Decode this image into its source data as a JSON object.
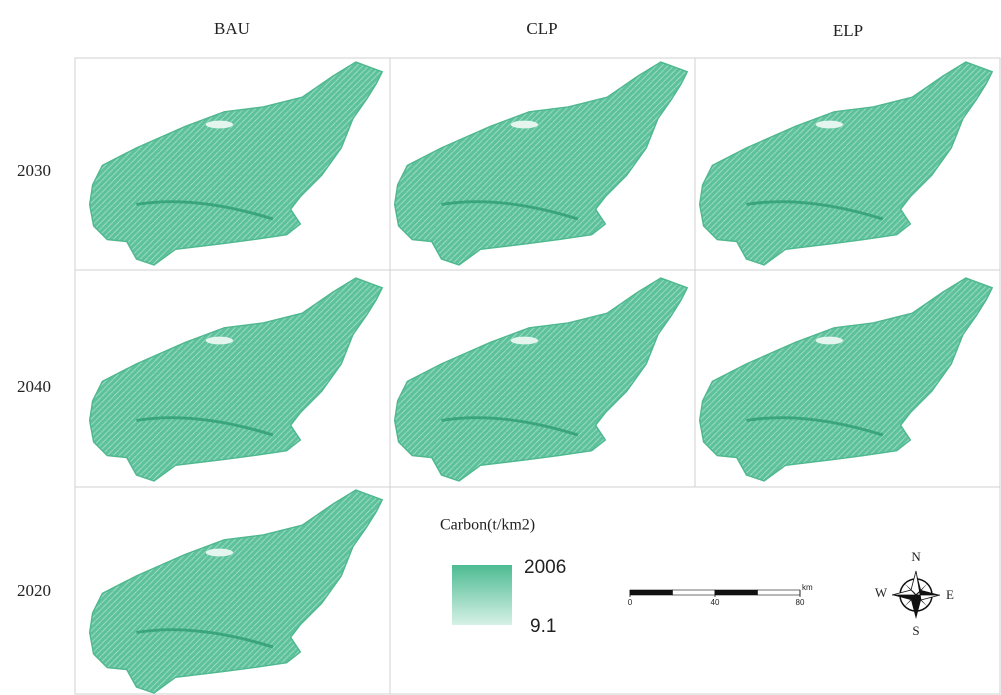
{
  "columns": [
    "BAU",
    "CLP",
    "ELP"
  ],
  "rows": [
    "2030",
    "2040",
    "2020"
  ],
  "legend": {
    "title": "Carbon(t/km2)",
    "max": 2006,
    "min": 9.1
  },
  "scale_bar": {
    "ticks": [
      0,
      40,
      80
    ],
    "unit": "km"
  },
  "compass": {
    "north": "N",
    "south": "S",
    "east": "E",
    "west": "W"
  }
}
